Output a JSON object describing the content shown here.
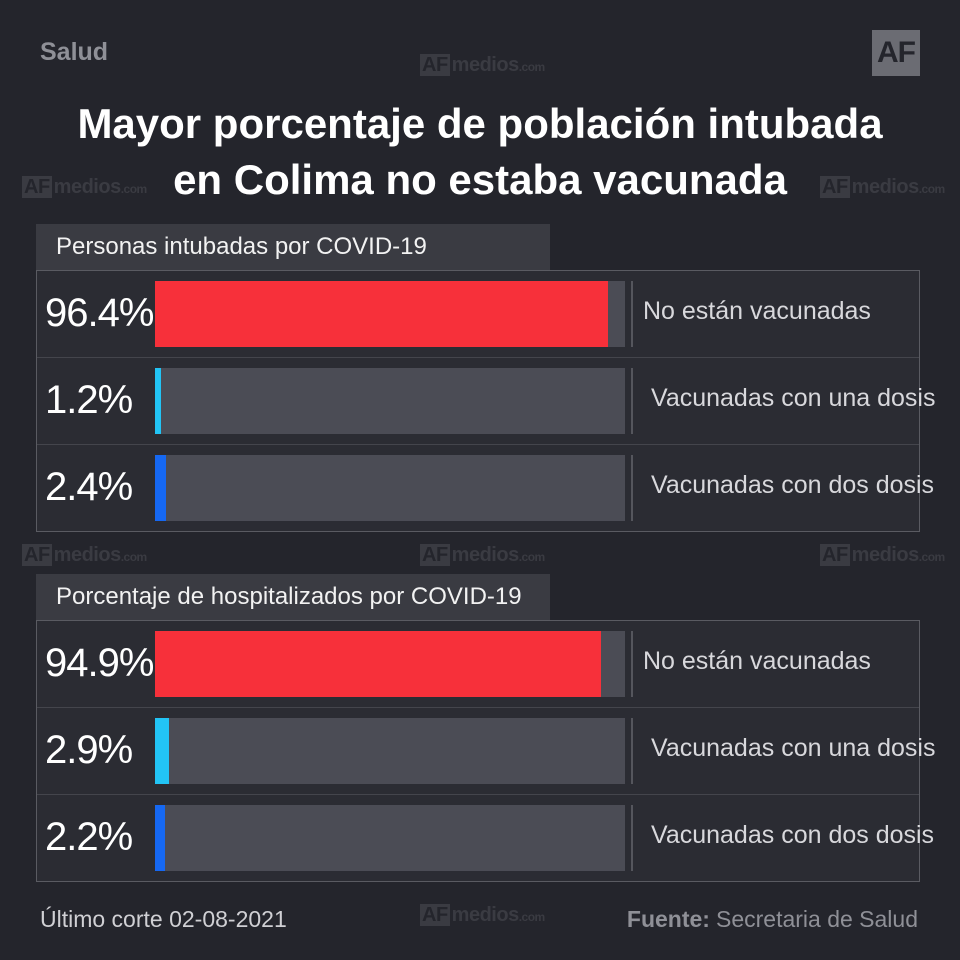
{
  "header": {
    "category": "Salud",
    "logo": "AF",
    "title_line1": "Mayor porcentaje de población intubada",
    "title_line2": "en Colima no estaba vacunada"
  },
  "watermark": {
    "af": "AF",
    "text": "medios",
    "suffix": ".com"
  },
  "colors": {
    "no_vacunadas": "#f7303a",
    "una_dosis": "#22c4f5",
    "dos_dosis": "#1668f2",
    "track": "#4b4c55",
    "background": "#24252c"
  },
  "chart_data": [
    {
      "type": "bar",
      "title": "Personas intubadas por COVID-19",
      "categories": [
        "No están vacunadas",
        "Vacunadas con una dosis",
        "Vacunadas con dos dosis"
      ],
      "values": [
        96.4,
        1.2,
        2.4
      ],
      "value_labels": [
        "96.4%",
        "1.2%",
        "2.4%"
      ],
      "colors": [
        "#f7303a",
        "#22c4f5",
        "#1668f2"
      ],
      "ylim": [
        0,
        100
      ]
    },
    {
      "type": "bar",
      "title": "Porcentaje de hospitalizados por COVID-19",
      "categories": [
        "No están vacunadas",
        "Vacunadas con una dosis",
        "Vacunadas con dos dosis"
      ],
      "values": [
        94.9,
        2.9,
        2.2
      ],
      "value_labels": [
        "94.9%",
        "2.9%",
        "2.2%"
      ],
      "colors": [
        "#f7303a",
        "#22c4f5",
        "#1668f2"
      ],
      "ylim": [
        0,
        100
      ]
    }
  ],
  "footer": {
    "date": "Último corte 02-08-2021",
    "source_label": "Fuente:",
    "source_value": "Secretaria de Salud"
  }
}
